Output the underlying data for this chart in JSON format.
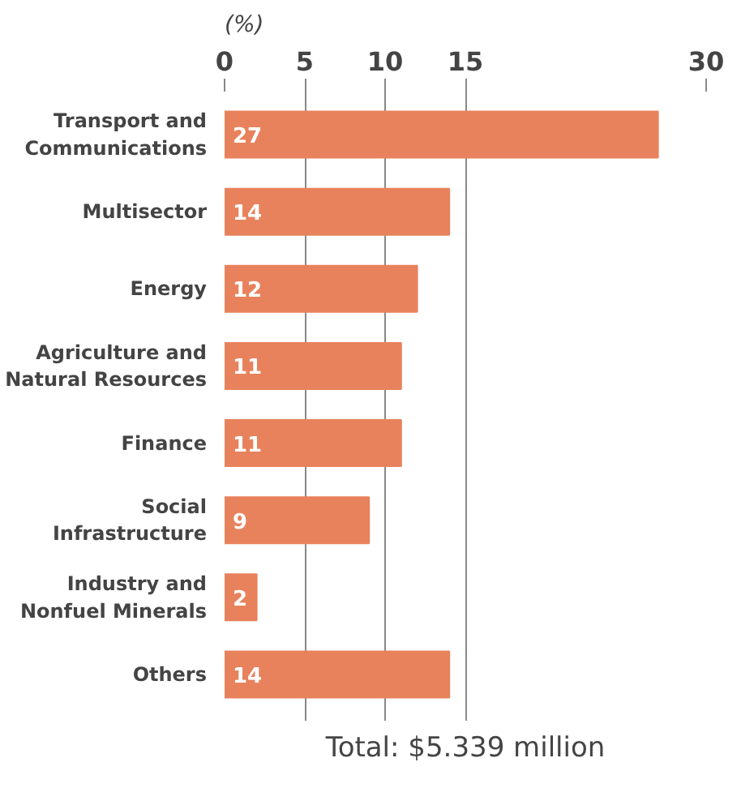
{
  "chart_data": {
    "type": "bar",
    "orientation": "horizontal",
    "xlabel": "(%)",
    "categories": [
      "Transport and Communications",
      "Multisector",
      "Energy",
      "Agriculture and Natural Resources",
      "Finance",
      "Social Infrastructure",
      "Industry and Nonfuel Minerals",
      "Others"
    ],
    "values": [
      27,
      14,
      12,
      11,
      11,
      9,
      2,
      14
    ],
    "color": "#e8825c",
    "xlim": [
      0,
      30
    ],
    "xticks": [
      0,
      5,
      10,
      15,
      30
    ],
    "grid": "x",
    "data_labels": true,
    "annotations": [
      "Total: $5.339 million"
    ]
  }
}
